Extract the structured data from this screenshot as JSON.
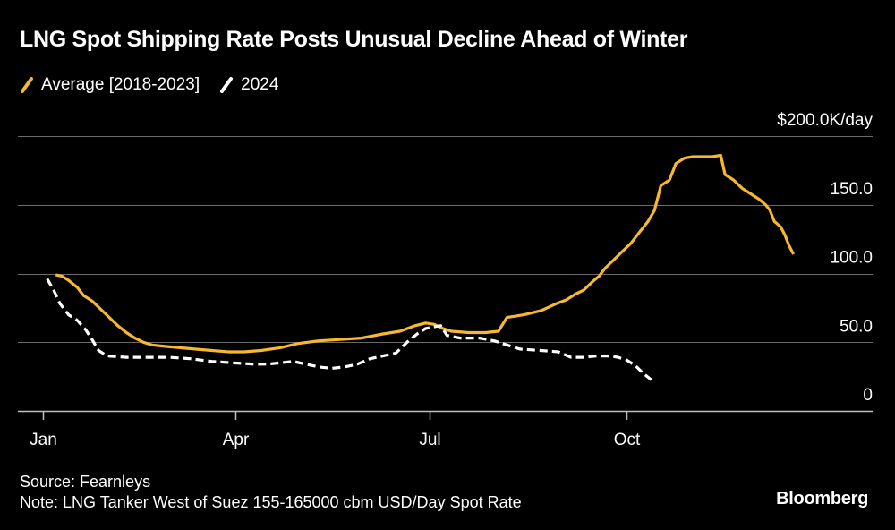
{
  "colors": {
    "average": "#f5b82e",
    "current": "#ffffff",
    "grid": "#6b6b6b",
    "background": "#000000"
  },
  "legend": {
    "average_label": "Average [2018-2023]",
    "current_label": "2024"
  },
  "footer": {
    "source": "Source: Fearnleys",
    "note": "Note: LNG Tanker West of Suez 155-165000 cbm USD/Day Spot Rate"
  },
  "brand": "Bloomberg",
  "chart_data": {
    "type": "line",
    "title": "LNG Spot Shipping Rate Posts Unusual Decline Ahead of Winter",
    "xlabel": "",
    "ylabel": "$K/day",
    "x_unit": "day of year",
    "xlim": [
      1,
      366
    ],
    "ylim": [
      0,
      200
    ],
    "grid": true,
    "legend_position": "top-left",
    "y_ticks": [
      {
        "value": 0,
        "label": "0"
      },
      {
        "value": 50,
        "label": "50.0"
      },
      {
        "value": 100,
        "label": "100.0"
      },
      {
        "value": 150,
        "label": "150.0"
      },
      {
        "value": 200,
        "label": "$200.0K/day"
      }
    ],
    "x_ticks": [
      {
        "value": 1,
        "label": "Jan"
      },
      {
        "value": 91,
        "label": "Apr"
      },
      {
        "value": 182,
        "label": "Jul"
      },
      {
        "value": 274,
        "label": "Oct"
      }
    ],
    "series": [
      {
        "name": "Average [2018-2023]",
        "style": "solid",
        "points": [
          [
            7,
            99
          ],
          [
            10,
            98
          ],
          [
            13,
            95
          ],
          [
            17,
            90
          ],
          [
            20,
            84
          ],
          [
            24,
            80
          ],
          [
            28,
            74
          ],
          [
            32,
            68
          ],
          [
            36,
            62
          ],
          [
            40,
            57
          ],
          [
            44,
            53
          ],
          [
            48,
            50
          ],
          [
            52,
            48
          ],
          [
            58,
            47
          ],
          [
            65,
            46
          ],
          [
            72,
            45
          ],
          [
            80,
            44
          ],
          [
            88,
            43
          ],
          [
            95,
            43
          ],
          [
            103,
            44
          ],
          [
            112,
            46
          ],
          [
            120,
            49
          ],
          [
            130,
            51
          ],
          [
            140,
            52
          ],
          [
            150,
            53
          ],
          [
            160,
            56
          ],
          [
            168,
            58
          ],
          [
            175,
            62
          ],
          [
            180,
            64
          ],
          [
            184,
            63
          ],
          [
            188,
            60
          ],
          [
            192,
            58
          ],
          [
            200,
            57
          ],
          [
            208,
            57
          ],
          [
            214,
            58
          ],
          [
            218,
            68
          ],
          [
            226,
            70
          ],
          [
            234,
            73
          ],
          [
            241,
            78
          ],
          [
            246,
            81
          ],
          [
            250,
            85
          ],
          [
            254,
            88
          ],
          [
            258,
            94
          ],
          [
            261,
            98
          ],
          [
            264,
            104
          ],
          [
            268,
            110
          ],
          [
            272,
            116
          ],
          [
            276,
            122
          ],
          [
            280,
            130
          ],
          [
            284,
            138
          ],
          [
            287,
            146
          ],
          [
            290,
            164
          ],
          [
            294,
            168
          ],
          [
            297,
            180
          ],
          [
            301,
            184
          ],
          [
            305,
            185
          ],
          [
            310,
            185
          ],
          [
            314,
            185
          ],
          [
            318,
            186
          ],
          [
            320,
            172
          ],
          [
            324,
            168
          ],
          [
            328,
            162
          ],
          [
            332,
            158
          ],
          [
            336,
            154
          ],
          [
            339,
            150
          ],
          [
            341,
            146
          ],
          [
            343,
            138
          ],
          [
            346,
            134
          ],
          [
            348,
            128
          ],
          [
            350,
            120
          ],
          [
            352,
            114
          ]
        ]
      },
      {
        "name": "2024",
        "style": "dashed",
        "points": [
          [
            3,
            96
          ],
          [
            6,
            88
          ],
          [
            9,
            78
          ],
          [
            13,
            70
          ],
          [
            17,
            66
          ],
          [
            21,
            59
          ],
          [
            24,
            52
          ],
          [
            27,
            44
          ],
          [
            31,
            40
          ],
          [
            40,
            39
          ],
          [
            50,
            39
          ],
          [
            60,
            39
          ],
          [
            70,
            38
          ],
          [
            80,
            36
          ],
          [
            90,
            35
          ],
          [
            100,
            34
          ],
          [
            106,
            34
          ],
          [
            112,
            35
          ],
          [
            118,
            36
          ],
          [
            124,
            34
          ],
          [
            130,
            32
          ],
          [
            136,
            31
          ],
          [
            142,
            32
          ],
          [
            148,
            34
          ],
          [
            154,
            38
          ],
          [
            160,
            40
          ],
          [
            166,
            42
          ],
          [
            172,
            51
          ],
          [
            176,
            56
          ],
          [
            180,
            60
          ],
          [
            183,
            61
          ],
          [
            187,
            62
          ],
          [
            190,
            55
          ],
          [
            196,
            53
          ],
          [
            205,
            53
          ],
          [
            212,
            51
          ],
          [
            218,
            48
          ],
          [
            224,
            45
          ],
          [
            234,
            44
          ],
          [
            242,
            43
          ],
          [
            248,
            39
          ],
          [
            254,
            39
          ],
          [
            260,
            40
          ],
          [
            266,
            40
          ],
          [
            270,
            39
          ],
          [
            274,
            37
          ],
          [
            278,
            33
          ],
          [
            282,
            27
          ],
          [
            286,
            22
          ]
        ]
      }
    ]
  }
}
